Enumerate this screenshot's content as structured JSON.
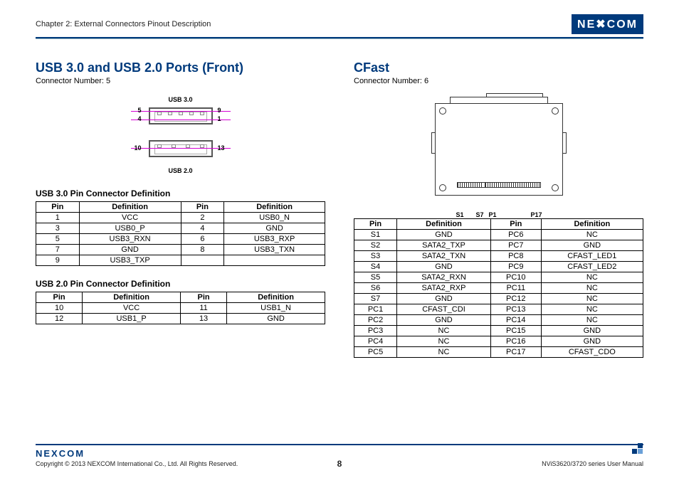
{
  "header": {
    "chapter": "Chapter 2: External Connectors Pinout Description",
    "brand_text": "NE",
    "brand_x": "X",
    "brand_text2": "COM"
  },
  "colors": {
    "brand": "#003a7c",
    "guide": "#d400d4"
  },
  "left": {
    "title": "USB 3.0 and USB 2.0 Ports (Front)",
    "subtitle": "Connector Number: 5",
    "usb_top_label": "USB 3.0",
    "usb_bot_label": "USB 2.0",
    "pins": {
      "p5": "5",
      "p4": "4",
      "p9": "9",
      "p1": "1",
      "p10": "10",
      "p13": "13"
    },
    "table1_title": "USB 3.0 Pin Connector Definition",
    "table1": {
      "headers": [
        "Pin",
        "Definition",
        "Pin",
        "Definition"
      ],
      "rows": [
        [
          "1",
          "VCC",
          "2",
          "USB0_N"
        ],
        [
          "3",
          "USB0_P",
          "4",
          "GND"
        ],
        [
          "5",
          "USB3_RXN",
          "6",
          "USB3_RXP"
        ],
        [
          "7",
          "GND",
          "8",
          "USB3_TXN"
        ],
        [
          "9",
          "USB3_TXP",
          "",
          ""
        ]
      ]
    },
    "table2_title": "USB 2.0 Pin Connector Definition",
    "table2": {
      "headers": [
        "Pin",
        "Definition",
        "Pin",
        "Definition"
      ],
      "rows": [
        [
          "10",
          "VCC",
          "11",
          "USB1_N"
        ],
        [
          "12",
          "USB1_P",
          "13",
          "GND"
        ]
      ]
    }
  },
  "right": {
    "title": "CFast",
    "subtitle": "Connector Number: 6",
    "slot_labels": {
      "s1": "S1",
      "s7": "S7",
      "p1": "P1",
      "p17": "P17"
    },
    "table": {
      "headers": [
        "Pin",
        "Definition",
        "Pin",
        "Definition"
      ],
      "rows": [
        [
          "S1",
          "GND",
          "PC6",
          "NC"
        ],
        [
          "S2",
          "SATA2_TXP",
          "PC7",
          "GND"
        ],
        [
          "S3",
          "SATA2_TXN",
          "PC8",
          "CFAST_LED1"
        ],
        [
          "S4",
          "GND",
          "PC9",
          "CFAST_LED2"
        ],
        [
          "S5",
          "SATA2_RXN",
          "PC10",
          "NC"
        ],
        [
          "S6",
          "SATA2_RXP",
          "PC11",
          "NC"
        ],
        [
          "S7",
          "GND",
          "PC12",
          "NC"
        ],
        [
          "PC1",
          "CFAST_CDI",
          "PC13",
          "NC"
        ],
        [
          "PC2",
          "GND",
          "PC14",
          "NC"
        ],
        [
          "PC3",
          "NC",
          "PC15",
          "GND"
        ],
        [
          "PC4",
          "NC",
          "PC16",
          "GND"
        ],
        [
          "PC5",
          "NC",
          "PC17",
          "CFAST_CDO"
        ]
      ]
    }
  },
  "footer": {
    "brand": "NEXCOM",
    "copyright": "Copyright © 2013 NEXCOM International Co., Ltd. All Rights Reserved.",
    "page": "8",
    "manual": "NViS3620/3720 series User Manual"
  }
}
